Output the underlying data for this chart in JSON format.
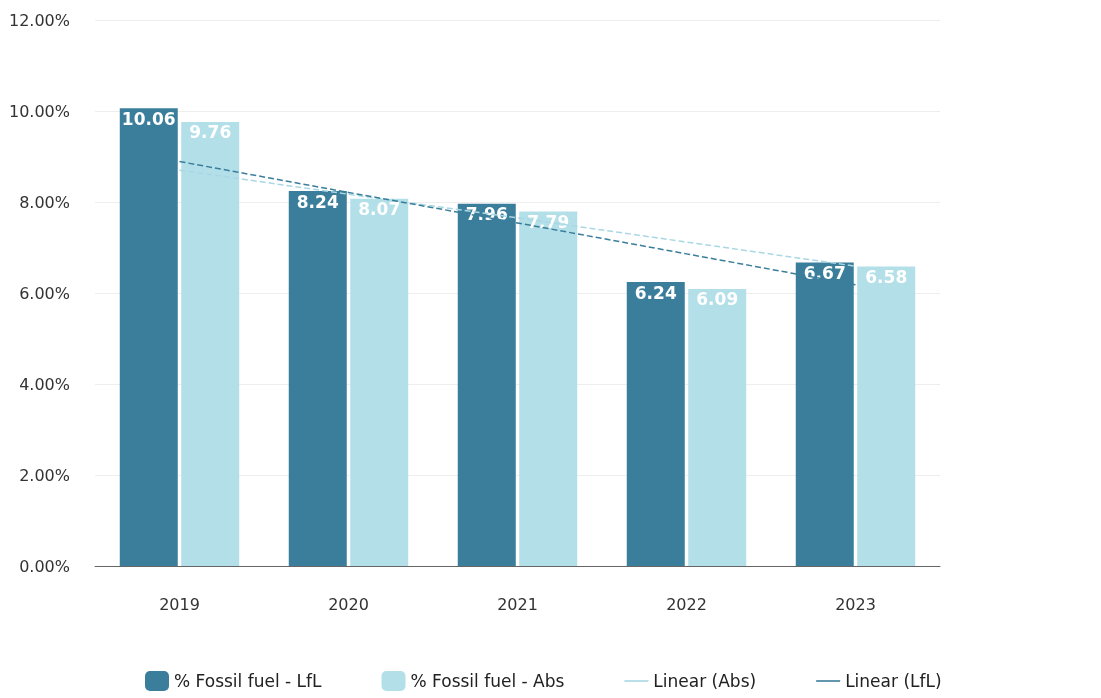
{
  "chart_data": {
    "type": "bar",
    "categories": [
      "2019",
      "2020",
      "2021",
      "2022",
      "2023"
    ],
    "series": [
      {
        "name": "% Fossil fuel - LfL",
        "color": "#3b7e9b",
        "values": [
          10.06,
          8.24,
          7.96,
          6.24,
          6.67
        ],
        "value_labels": [
          "10.06",
          "8.24",
          "7.96",
          "6.24",
          "6.67"
        ]
      },
      {
        "name": "% Fossil fuel - Abs",
        "color": "#b3dfe9",
        "values": [
          9.76,
          8.07,
          7.79,
          6.09,
          6.58
        ],
        "value_labels": [
          "9.76",
          "8.07",
          "7.79",
          "6.09",
          "6.58"
        ]
      },
      {
        "name": "Linear (Abs)",
        "type": "line",
        "color": "#a9d8e4",
        "line_style": "dashed",
        "values": [
          8.7,
          8.17,
          7.65,
          7.12,
          6.59
        ]
      },
      {
        "name": "Linear (LfL)",
        "type": "line",
        "color": "#3b7e9b",
        "line_style": "dashed",
        "values": [
          8.89,
          8.21,
          7.54,
          6.86,
          6.18
        ]
      }
    ],
    "ylim": [
      0,
      12
    ],
    "yticks": [
      {
        "value": 0,
        "label": "0.00%"
      },
      {
        "value": 2,
        "label": "2.00%"
      },
      {
        "value": 4,
        "label": "4.00%"
      },
      {
        "value": 6,
        "label": "6.00%"
      },
      {
        "value": 8,
        "label": "8.00%"
      },
      {
        "value": 10,
        "label": "10.00%"
      },
      {
        "value": 12,
        "label": "12.00%"
      }
    ],
    "grid": "y",
    "legend": "bottom",
    "marker": "none"
  }
}
